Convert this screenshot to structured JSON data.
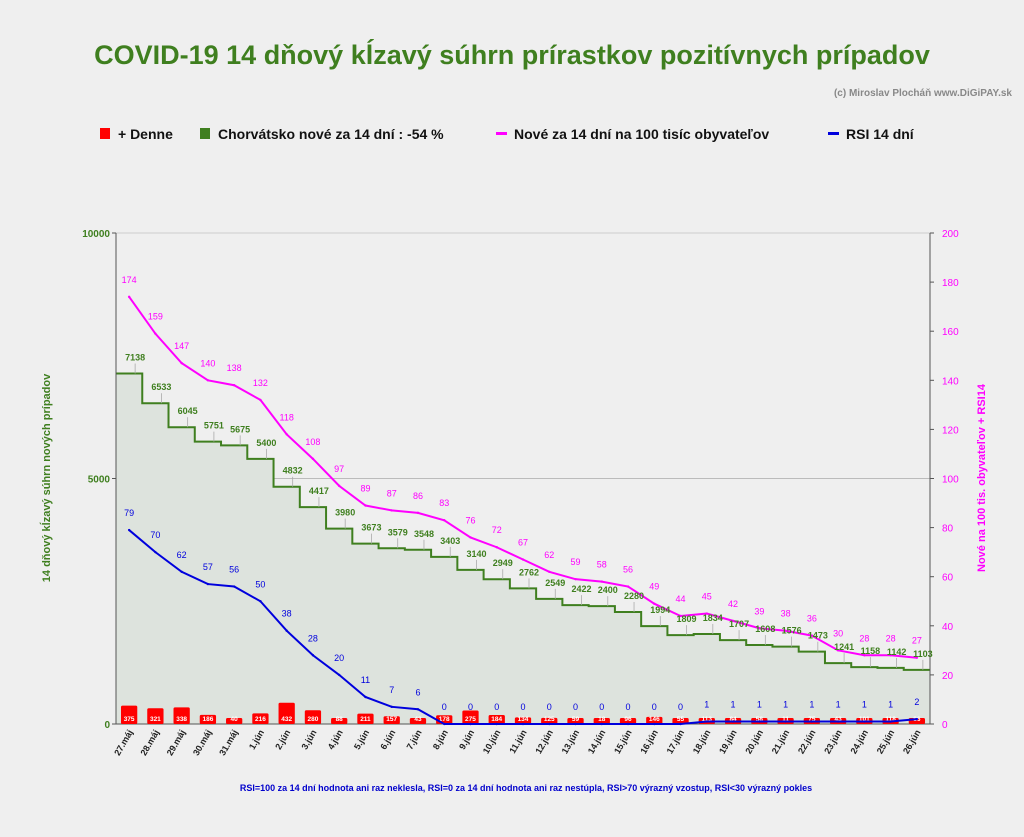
{
  "title": "COVID-19 14 dňový kĺzavý súhrn prírastkov pozitívnych prípadov",
  "credit": "(c) Miroslav Plocháň  www.DiGiPAY.sk",
  "footnote": "RSI=100 za 14 dní hodnota ani raz neklesla, RSI=0 za 14 dní hodnota ani raz nestúpla, RSI>70 výrazný  vzostup, RSI<30 výrazný pokles",
  "colors": {
    "title": "#3f7f1f",
    "green": "#3f7f1f",
    "magenta": "#ff00ff",
    "blue": "#0000dd",
    "red": "#ff0000",
    "area": "#dde3dd",
    "footnote": "#0000cc"
  },
  "chart_data": {
    "type": "combo",
    "categories": [
      "27.máj",
      "28.máj",
      "29.máj",
      "30.máj",
      "31.máj",
      "1.jún",
      "2.jún",
      "3.jún",
      "4.jún",
      "5.jún",
      "6.jún",
      "7.jún",
      "8.jún",
      "9.jún",
      "10.jún",
      "11.jún",
      "12.jún",
      "13.jún",
      "14.jún",
      "15.jún",
      "16.jún",
      "17.jún",
      "18.jún",
      "19.jún",
      "20.jún",
      "21.jún",
      "22.jún",
      "23.jún",
      "24.jún",
      "25.jún",
      "26.jún"
    ],
    "left_axis": {
      "label": "14 dňový kĺzavý  súhrn nových prípadov",
      "range": [
        0,
        10000
      ],
      "ticks": [
        "0",
        "5000",
        "10000"
      ]
    },
    "right_axis": {
      "label": "Nové na 100 tis. obyvateľov + RSI14",
      "range": [
        0,
        200
      ],
      "ticks": [
        "0",
        "20",
        "40",
        "60",
        "80",
        "100",
        "120",
        "140",
        "160",
        "180",
        "200"
      ]
    },
    "grid": true,
    "legend_position": "top",
    "series": [
      {
        "name": "+ Denne",
        "kind": "bar",
        "axis": "left",
        "color": "#ff0000",
        "values": [
          375,
          321,
          338,
          186,
          40,
          216,
          432,
          280,
          88,
          211,
          157,
          43,
          178,
          275,
          184,
          134,
          125,
          59,
          18,
          96,
          146,
          55,
          113,
          84,
          58,
          11,
          75,
          43,
          101,
          118,
          86
        ]
      },
      {
        "name": "Chorvátsko nové za 14 dní : -54 %",
        "kind": "step-area",
        "axis": "left",
        "color": "#3f7f1f",
        "values": [
          7138,
          6533,
          6045,
          5751,
          5675,
          5400,
          4832,
          4417,
          3980,
          3673,
          3579,
          3548,
          3403,
          3140,
          2949,
          2762,
          2549,
          2422,
          2400,
          2280,
          1994,
          1809,
          1834,
          1707,
          1608,
          1576,
          1473,
          1241,
          1158,
          1142,
          1103
        ]
      },
      {
        "name": "Nové za 14 dní na 100 tisíc obyvateľov",
        "kind": "line",
        "axis": "right",
        "color": "#ff00ff",
        "values": [
          174,
          159,
          147,
          140,
          138,
          132,
          118,
          108,
          97,
          89,
          87,
          86,
          83,
          76,
          72,
          67,
          62,
          59,
          58,
          56,
          49,
          44,
          45,
          42,
          39,
          38,
          36,
          30,
          28,
          28,
          27
        ]
      },
      {
        "name": "RSI 14 dní",
        "kind": "line",
        "axis": "right",
        "color": "#0000dd",
        "values": [
          79,
          70,
          62,
          57,
          56,
          50,
          38,
          28,
          20,
          11,
          7,
          6,
          0,
          0,
          0,
          0,
          0,
          0,
          0,
          0,
          0,
          0,
          1,
          1,
          1,
          1,
          1,
          1,
          1,
          1,
          2
        ]
      }
    ]
  }
}
